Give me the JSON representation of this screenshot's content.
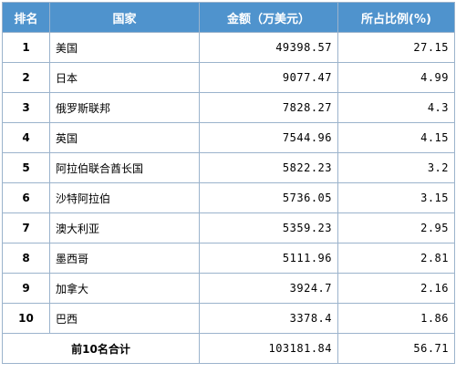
{
  "header": {
    "rank": "排名",
    "country": "国家",
    "amount": "金额（万美元）",
    "share": "所占比例(%)"
  },
  "rows": [
    {
      "rank": "1",
      "country": "美国",
      "amount": "49398.57",
      "share": "27.15"
    },
    {
      "rank": "2",
      "country": "日本",
      "amount": "9077.47",
      "share": "4.99"
    },
    {
      "rank": "3",
      "country": "俄罗斯联邦",
      "amount": "7828.27",
      "share": "4.3"
    },
    {
      "rank": "4",
      "country": "英国",
      "amount": "7544.96",
      "share": "4.15"
    },
    {
      "rank": "5",
      "country": "阿拉伯联合酋长国",
      "amount": "5822.23",
      "share": "3.2"
    },
    {
      "rank": "6",
      "country": "沙特阿拉伯",
      "amount": "5736.05",
      "share": "3.15"
    },
    {
      "rank": "7",
      "country": "澳大利亚",
      "amount": "5359.23",
      "share": "2.95"
    },
    {
      "rank": "8",
      "country": "墨西哥",
      "amount": "5111.96",
      "share": "2.81"
    },
    {
      "rank": "9",
      "country": "加拿大",
      "amount": "3924.7",
      "share": "2.16"
    },
    {
      "rank": "10",
      "country": "巴西",
      "amount": "3378.4",
      "share": "1.86"
    }
  ],
  "total": {
    "label": "前10名合计",
    "amount": "103181.84",
    "share": "56.71"
  },
  "colors": {
    "header_bg": "#4f93cd",
    "header_text": "#ffffff",
    "border": "#9bb3cc"
  }
}
